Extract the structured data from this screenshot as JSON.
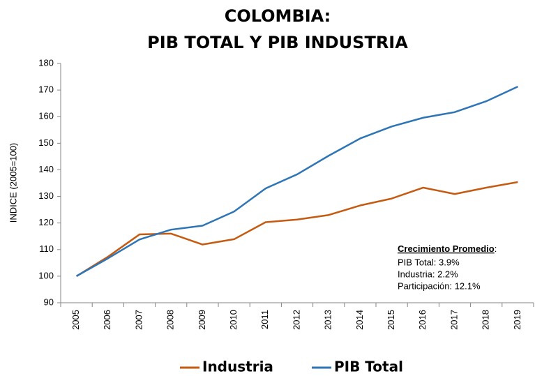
{
  "chart_data": {
    "type": "line",
    "title": [
      "COLOMBIA:",
      "PIB TOTAL Y PIB INDUSTRIA"
    ],
    "y_label": "INDICE (2005=100)",
    "categories": [
      "2005",
      "2006",
      "2007",
      "2008",
      "2009",
      "2010",
      "2011",
      "2012",
      "2013",
      "2014",
      "2015",
      "2016",
      "2017",
      "2018",
      "2019"
    ],
    "series": [
      {
        "name": "Industria",
        "color": "#c55a11",
        "values": [
          100,
          107.3,
          115.7,
          116,
          111.9,
          113.9,
          120.3,
          121.3,
          123,
          126.6,
          129.2,
          133.3,
          130.9,
          133.3,
          135.4
        ]
      },
      {
        "name": "PIB Total",
        "color": "#2e75b6",
        "values": [
          100,
          106.7,
          113.8,
          117.5,
          119,
          124.3,
          133,
          138.3,
          145.3,
          151.8,
          156.3,
          159.6,
          161.7,
          165.8,
          171.3
        ]
      }
    ],
    "ylim": [
      90,
      180
    ],
    "yticks": [
      90,
      100,
      110,
      120,
      130,
      140,
      150,
      160,
      170,
      180
    ],
    "grid": false,
    "legend": "bottom",
    "annotation": {
      "heading": "Crecimiento Promedio",
      "heading_suffix": ":",
      "lines": [
        "PIB Total: 3.9%",
        "Industria: 2.2%",
        "Participación: 12.1%"
      ]
    }
  }
}
